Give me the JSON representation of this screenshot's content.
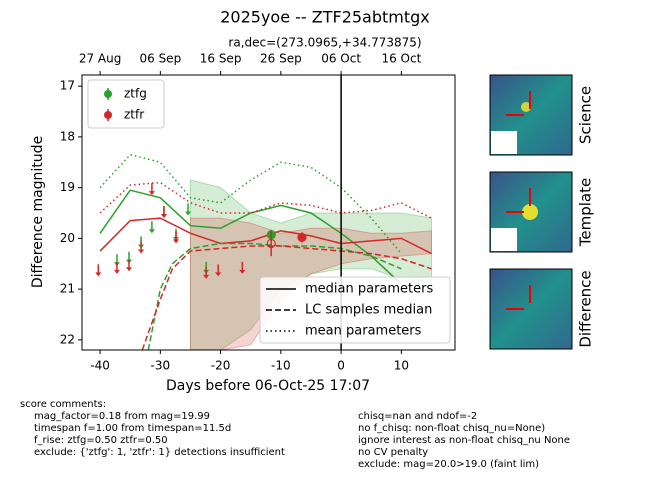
{
  "chart_data": {
    "type": "lightcurve",
    "title": "2025yoe -- ZTF25abtmtgx",
    "subtitle": "ra,dec=(273.0965,+34.773875)",
    "xlabel": "Days before 06-Oct-25 17:07",
    "ylabel": "Difference magnitude",
    "xlim": [
      -43,
      18.9
    ],
    "ylim": [
      22.2,
      16.78
    ],
    "xticks": [
      -40,
      -30,
      -20,
      -10,
      0,
      10
    ],
    "yticks": [
      17,
      18,
      19,
      20,
      21,
      22
    ],
    "top_xticks": [
      {
        "value": -40,
        "label": "27 Aug"
      },
      {
        "value": -30,
        "label": "06 Sep"
      },
      {
        "value": -20,
        "label": "16 Sep"
      },
      {
        "value": -10,
        "label": "26 Sep"
      },
      {
        "value": 0,
        "label": "06 Oct"
      },
      {
        "value": 10,
        "label": "16 Oct"
      }
    ],
    "vline": 0,
    "legend": "upper left",
    "series": [
      {
        "name": "ztfg",
        "color": "#2ca02c",
        "limits": {
          "x": [
            -37.2,
            -35.2,
            -33.2,
            -31.4,
            -29.4,
            -27.4,
            -25.4,
            -22.4
          ],
          "values": [
            20.45,
            20.4,
            20.1,
            19.8,
            19.5,
            19.95,
            19.45,
            20.6
          ]
        },
        "detections": {
          "x": [
            -11.6
          ],
          "values": [
            19.93
          ],
          "errors": [
            0.1
          ],
          "filled": [
            true
          ]
        }
      },
      {
        "name": "ztfr",
        "color": "#d62728",
        "limits": {
          "x": [
            -40.3,
            -37.2,
            -35.2,
            -33.2,
            -31.4,
            -29.4,
            -27.4,
            -22.4,
            -20.4,
            -16.4
          ],
          "values": [
            20.65,
            20.6,
            20.55,
            20.2,
            19.05,
            19.5,
            20.0,
            20.7,
            20.65,
            20.6
          ]
        },
        "detections": {
          "x": [
            -11.6,
            -6.5
          ],
          "values": [
            20.1,
            19.98
          ],
          "errors": [
            0.25,
            0.1
          ],
          "filled": [
            false,
            true
          ]
        }
      }
    ],
    "line_styles": [
      {
        "name": "median parameters",
        "dash": "solid"
      },
      {
        "name": "LC samples median",
        "dash": "dashed"
      },
      {
        "name": "mean parameters",
        "dash": "dotted"
      }
    ],
    "bands": [
      {
        "color": "#2ca02c",
        "x": [
          -25,
          -20,
          -15,
          -10,
          -5,
          0,
          5,
          10,
          15
        ],
        "lo": [
          18.85,
          19.0,
          19.5,
          19.7,
          19.5,
          19.5,
          19.5,
          19.5,
          19.6
        ],
        "hi": [
          22.2,
          22.2,
          21.8,
          21.0,
          20.7,
          20.6,
          20.6,
          20.8,
          21.0
        ]
      },
      {
        "color": "#d62728",
        "x": [
          -25,
          -20,
          -15,
          -10,
          -5,
          0,
          5,
          10,
          15
        ],
        "lo": [
          19.6,
          19.6,
          19.7,
          19.9,
          19.8,
          19.8,
          19.9,
          19.9,
          19.85
        ],
        "hi": [
          22.2,
          22.2,
          22.1,
          21.2,
          20.7,
          20.5,
          20.4,
          20.35,
          20.3
        ]
      }
    ],
    "curves": [
      {
        "color": "#2ca02c",
        "dash": "solid",
        "x": [
          -40,
          -35,
          -30,
          -25,
          -20,
          -15,
          -10,
          -5,
          0,
          5,
          10
        ],
        "values": [
          19.9,
          19.05,
          19.2,
          19.75,
          19.8,
          19.5,
          19.35,
          19.5,
          19.9,
          20.35,
          20.9
        ]
      },
      {
        "color": "#d62728",
        "dash": "solid",
        "x": [
          -40,
          -35,
          -30,
          -25,
          -20,
          -15,
          -10,
          -5,
          0,
          5,
          10,
          15
        ],
        "values": [
          20.25,
          19.65,
          19.6,
          19.9,
          20.1,
          20.05,
          19.85,
          19.95,
          20.1,
          20.05,
          20.0,
          20.3
        ]
      },
      {
        "color": "#2ca02c",
        "dash": "dashed",
        "x": [
          -32,
          -30,
          -28,
          -25,
          -20,
          -15,
          -10,
          -5,
          0,
          5,
          10
        ],
        "values": [
          22.2,
          21.0,
          20.5,
          20.2,
          20.1,
          20.1,
          20.15,
          20.15,
          20.2,
          20.35,
          20.6
        ]
      },
      {
        "color": "#d62728",
        "dash": "dashed",
        "x": [
          -33,
          -30,
          -28,
          -25,
          -20,
          -15,
          -10,
          -5,
          0,
          5,
          10,
          15
        ],
        "values": [
          22.2,
          21.2,
          20.6,
          20.25,
          20.2,
          20.15,
          20.15,
          20.2,
          20.25,
          20.3,
          20.4,
          20.6
        ]
      },
      {
        "color": "#2ca02c",
        "dash": "dotted",
        "x": [
          -40,
          -35,
          -30,
          -25,
          -20,
          -15,
          -10,
          -5,
          0,
          5,
          10
        ],
        "values": [
          19.0,
          18.35,
          18.5,
          19.2,
          19.3,
          18.85,
          18.5,
          18.6,
          19.0,
          19.6,
          20.3
        ]
      },
      {
        "color": "#d62728",
        "dash": "dotted",
        "x": [
          -40,
          -35,
          -30,
          -25,
          -20,
          -15,
          -10,
          -5,
          0,
          5,
          10,
          15
        ],
        "values": [
          19.5,
          18.95,
          18.9,
          19.3,
          19.5,
          19.5,
          19.3,
          19.35,
          19.5,
          19.45,
          19.3,
          19.6
        ]
      }
    ]
  },
  "cutouts": [
    "Science",
    "Template",
    "Difference"
  ],
  "comments": {
    "heading": "score comments:",
    "left": [
      "mag_factor=0.18 from mag=19.99",
      "timespan f=1.00 from timespan=11.5d",
      "f_rise: ztfg=0.50 ztfr=0.50",
      "exclude: {'ztfg': 1, 'ztfr': 1} detections insufficient"
    ],
    "right": [
      "chisq=nan and ndof=-2",
      "no f_chisq: non-float chisq_nu=None)",
      "ignore interest as non-float chisq_nu None",
      "no CV penalty",
      "exclude: mag=20.0>19.0 (faint lim)"
    ]
  }
}
